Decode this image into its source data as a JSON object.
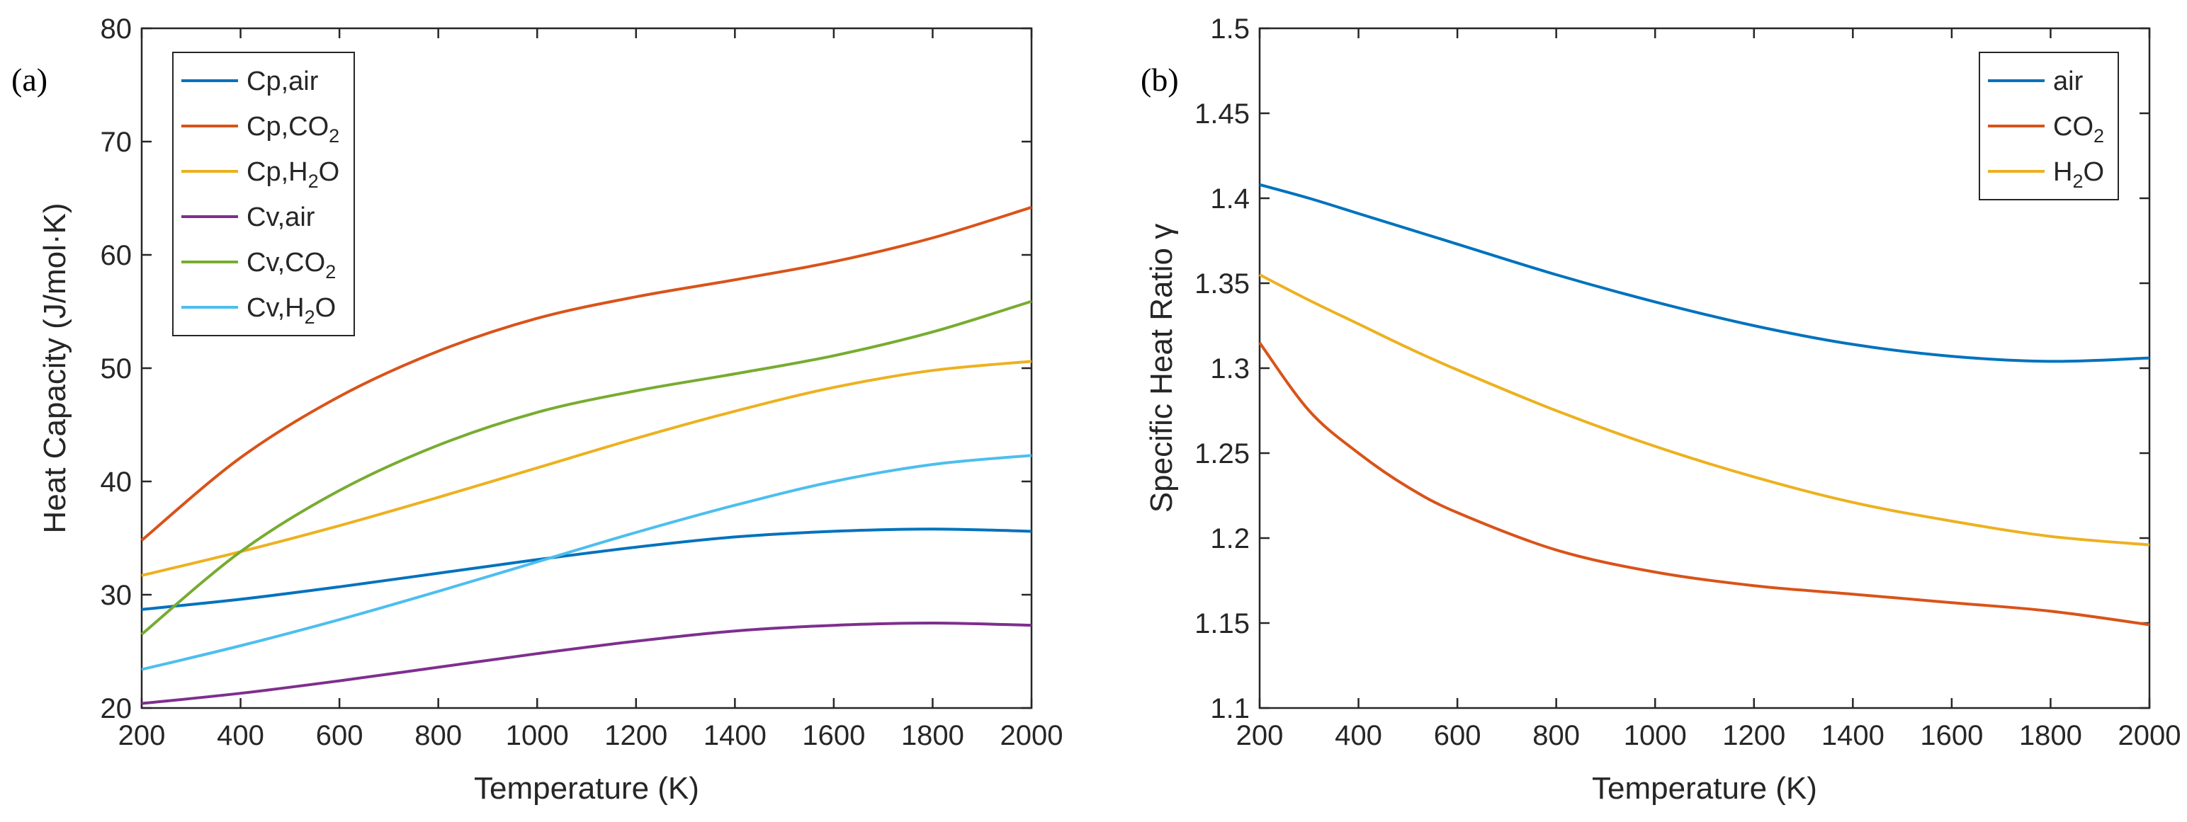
{
  "chart_data": [
    {
      "type": "line",
      "panel_label": "(a)",
      "xlabel": "Temperature (K)",
      "ylabel": "Heat Capacity (J/mol·K)",
      "xlim": [
        200,
        2000
      ],
      "ylim": [
        20,
        80
      ],
      "xticks": [
        200,
        400,
        600,
        800,
        1000,
        1200,
        1400,
        1600,
        1800,
        2000
      ],
      "yticks": [
        20,
        30,
        40,
        50,
        60,
        70,
        80
      ],
      "legend_position": "top-left",
      "x": [
        200,
        400,
        600,
        800,
        1000,
        1200,
        1400,
        1600,
        1800,
        2000
      ],
      "series": [
        {
          "name": "Cp,air",
          "label_main": "Cp,air",
          "label_sub": "",
          "label_tail": "",
          "color": "#0072BD",
          "values": [
            28.7,
            29.6,
            30.7,
            31.9,
            33.1,
            34.2,
            35.1,
            35.6,
            35.8,
            35.6
          ]
        },
        {
          "name": "Cp,CO2",
          "label_main": "Cp,CO",
          "label_sub": "2",
          "label_tail": "",
          "color": "#D95319",
          "values": [
            34.8,
            42.1,
            47.5,
            51.5,
            54.4,
            56.3,
            57.8,
            59.4,
            61.5,
            64.2
          ]
        },
        {
          "name": "Cp,H2O",
          "label_main": "Cp,H",
          "label_sub": "2",
          "label_tail": "O",
          "color": "#EDB120",
          "values": [
            31.7,
            33.8,
            36.1,
            38.6,
            41.2,
            43.8,
            46.2,
            48.3,
            49.8,
            50.6
          ]
        },
        {
          "name": "Cv,air",
          "label_main": "Cv,air",
          "label_sub": "",
          "label_tail": "",
          "color": "#7E2F8E",
          "values": [
            20.4,
            21.3,
            22.4,
            23.6,
            24.8,
            25.9,
            26.8,
            27.3,
            27.5,
            27.3
          ]
        },
        {
          "name": "Cv,CO2",
          "label_main": "Cv,CO",
          "label_sub": "2",
          "label_tail": "",
          "color": "#77AC30",
          "values": [
            26.5,
            33.8,
            39.2,
            43.2,
            46.1,
            48.0,
            49.5,
            51.1,
            53.2,
            55.9
          ]
        },
        {
          "name": "Cv,H2O",
          "label_main": "Cv,H",
          "label_sub": "2",
          "label_tail": "O",
          "color": "#4DBEEE",
          "values": [
            23.4,
            25.5,
            27.8,
            30.3,
            32.9,
            35.5,
            37.9,
            40.0,
            41.5,
            42.3
          ]
        }
      ]
    },
    {
      "type": "line",
      "panel_label": "(b)",
      "xlabel": "Temperature (K)",
      "ylabel": "Specific Heat Ratio γ",
      "xlim": [
        200,
        2000
      ],
      "ylim": [
        1.1,
        1.5
      ],
      "xticks": [
        200,
        400,
        600,
        800,
        1000,
        1200,
        1400,
        1600,
        1800,
        2000
      ],
      "yticks": [
        1.1,
        1.15,
        1.2,
        1.25,
        1.3,
        1.35,
        1.4,
        1.45,
        1.5
      ],
      "legend_position": "top-right",
      "x": [
        200,
        300,
        400,
        500,
        600,
        800,
        1000,
        1200,
        1400,
        1600,
        1800,
        2000
      ],
      "series": [
        {
          "name": "air",
          "label_main": "air",
          "label_sub": "",
          "label_tail": "",
          "color": "#0072BD",
          "values": [
            1.408,
            1.4,
            1.391,
            1.382,
            1.373,
            1.355,
            1.339,
            1.325,
            1.314,
            1.307,
            1.304,
            1.306
          ]
        },
        {
          "name": "CO2",
          "label_main": "CO",
          "label_sub": "2",
          "label_tail": "",
          "color": "#D95319",
          "values": [
            1.315,
            1.275,
            1.25,
            1.23,
            1.215,
            1.193,
            1.18,
            1.172,
            1.167,
            1.162,
            1.157,
            1.149
          ]
        },
        {
          "name": "H2O",
          "label_main": "H",
          "label_sub": "2",
          "label_tail": "O",
          "color": "#EDB120",
          "values": [
            1.355,
            1.34,
            1.326,
            1.312,
            1.299,
            1.275,
            1.254,
            1.236,
            1.221,
            1.21,
            1.201,
            1.196
          ]
        }
      ]
    }
  ]
}
